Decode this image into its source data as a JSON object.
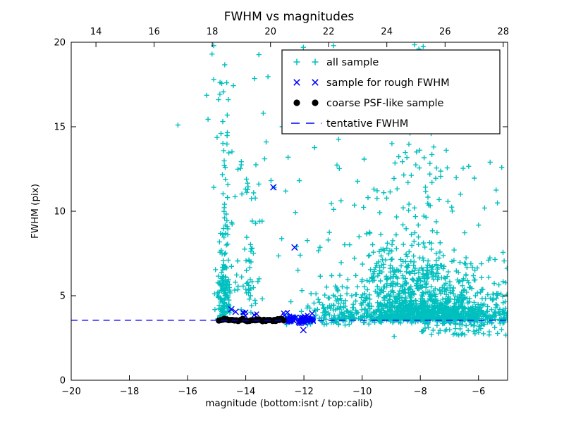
{
  "figure": {
    "title": "FWHM vs magnitudes",
    "background": "#ffffff",
    "axis_color": "#000000"
  },
  "axes": {
    "xlabel": "magnitude (bottom:isnt / top:calib)",
    "ylabel": "FWHM (pix)",
    "x_bottom": {
      "range": [
        -20,
        -5
      ],
      "ticks": [
        {
          "v": -20,
          "label": "−20"
        },
        {
          "v": -18,
          "label": "−18"
        },
        {
          "v": -16,
          "label": "−16"
        },
        {
          "v": -14,
          "label": "−14"
        },
        {
          "v": -12,
          "label": "−12"
        },
        {
          "v": -10,
          "label": "−10"
        },
        {
          "v": -8,
          "label": "−8"
        },
        {
          "v": -6,
          "label": "−6"
        }
      ]
    },
    "x_top": {
      "range": [
        13.15,
        28.15
      ],
      "ticks": [
        {
          "v": 14,
          "label": "14"
        },
        {
          "v": 16,
          "label": "16"
        },
        {
          "v": 18,
          "label": "18"
        },
        {
          "v": 20,
          "label": "20"
        },
        {
          "v": 22,
          "label": "22"
        },
        {
          "v": 24,
          "label": "24"
        },
        {
          "v": 26,
          "label": "26"
        },
        {
          "v": 28,
          "label": "28"
        }
      ]
    },
    "y": {
      "range": [
        0,
        20
      ],
      "ticks": [
        {
          "v": 0,
          "label": "0"
        },
        {
          "v": 5,
          "label": "5"
        },
        {
          "v": 10,
          "label": "10"
        },
        {
          "v": 15,
          "label": "15"
        },
        {
          "v": 20,
          "label": "20"
        }
      ]
    }
  },
  "legend": {
    "items": [
      {
        "label": "all sample",
        "marker": "plus",
        "color": "#00bfbf"
      },
      {
        "label": "sample for rough FWHM",
        "marker": "x",
        "color": "#0000ff"
      },
      {
        "label": "coarse PSF-like sample",
        "marker": "dot",
        "color": "#000000"
      },
      {
        "label": "tentative FWHM",
        "marker": "dash",
        "color": "#0000ff"
      }
    ]
  },
  "chart_data": {
    "type": "scatter",
    "title": "FWHM vs magnitudes",
    "xlabel": "magnitude (bottom:isnt / top:calib)",
    "ylabel": "FWHM (pix)",
    "xlim": [
      -20,
      -5
    ],
    "x_top_lim": [
      13.15,
      28.15
    ],
    "ylim": [
      0,
      20
    ],
    "grid": false,
    "legend_position": "upper right",
    "tentative_fwhm": 3.55,
    "seed": 1337,
    "series": [
      {
        "name": "all sample",
        "marker": "+",
        "color": "#00bfbf",
        "clusters": [
          {
            "n": 480,
            "x": {
              "dist": "normal",
              "mu": -7.7,
              "sigma": 1.15,
              "min": -11.2,
              "max": -5.0
            },
            "y": {
              "dist": "halfnormal",
              "base": 3.55,
              "sigma": 0.45,
              "max": 20
            }
          },
          {
            "n": 430,
            "x": {
              "dist": "normal",
              "mu": -8.15,
              "sigma": 1.05,
              "min": -11.3,
              "max": -5.0
            },
            "y": {
              "dist": "halfnormal",
              "base": 3.6,
              "sigma": 1.7,
              "max": 20
            }
          },
          {
            "n": 260,
            "x": {
              "dist": "normal",
              "mu": -8.3,
              "sigma": 1.15,
              "min": -11.5,
              "max": -5.0
            },
            "y": {
              "dist": "halfnormal",
              "base": 3.7,
              "sigma": 3.3,
              "max": 16.8
            }
          },
          {
            "n": 70,
            "x": {
              "dist": "normal",
              "mu": -8.1,
              "sigma": 1.4,
              "min": -11.0,
              "max": -5.0
            },
            "y": {
              "dist": "uniform",
              "min": 10,
              "max": 16.5
            }
          },
          {
            "n": 80,
            "x": {
              "dist": "uniform",
              "min": -6.6,
              "max": -5.0
            },
            "y": {
              "dist": "halfnormal",
              "base": 3.5,
              "sigma": 1.4,
              "max": 9
            }
          },
          {
            "n": 55,
            "x": {
              "dist": "uniform",
              "min": -8.0,
              "max": -5.05
            },
            "y": {
              "dist": "uniform",
              "min": 2.65,
              "max": 3.4
            }
          },
          {
            "n": 210,
            "x": {
              "dist": "uniform",
              "min": -12.6,
              "max": -5.0
            },
            "y": {
              "dist": "normal",
              "mu": 3.55,
              "sigma": 0.12,
              "min": 3.2,
              "max": 3.95
            }
          },
          {
            "n": 85,
            "x": {
              "dist": "uniform",
              "min": -12.1,
              "max": -5.1
            },
            "y": {
              "dist": "halfnormal",
              "base": 3.8,
              "sigma": 0.6,
              "max": 6
            }
          },
          {
            "n": 40,
            "x": {
              "dist": "uniform",
              "min": -11.35,
              "max": -10.2
            },
            "y": {
              "dist": "halfnormal",
              "base": 3.6,
              "sigma": 1.1,
              "max": 7
            }
          },
          {
            "n": 150,
            "x": {
              "dist": "normal",
              "mu": -14.75,
              "sigma": 0.12,
              "min": -15.2,
              "max": -14.4
            },
            "y": {
              "dist": "halfnormal",
              "base": 3.6,
              "sigma": 1.9,
              "max": 10
            }
          },
          {
            "n": 35,
            "x": {
              "dist": "normal",
              "mu": -14.73,
              "sigma": 0.14,
              "min": -15.2,
              "max": -14.35
            },
            "y": {
              "dist": "uniform",
              "min": 8,
              "max": 15
            }
          },
          {
            "n": 8,
            "x": {
              "dist": "normal",
              "mu": -14.8,
              "sigma": 0.15,
              "min": -15.2,
              "max": -14.4
            },
            "y": {
              "dist": "uniform",
              "min": 15,
              "max": 19.9
            }
          },
          {
            "n": 45,
            "x": {
              "dist": "normal",
              "mu": -13.95,
              "sigma": 0.22,
              "min": -14.5,
              "max": -13.4
            },
            "y": {
              "dist": "uniform",
              "min": 3.9,
              "max": 8.5
            }
          },
          {
            "n": 20,
            "x": {
              "dist": "normal",
              "mu": -13.9,
              "sigma": 0.25,
              "min": -14.5,
              "max": -13.3
            },
            "y": {
              "dist": "uniform",
              "min": 8.5,
              "max": 13
            }
          },
          {
            "n": 30,
            "x": {
              "dist": "uniform",
              "min": -13.3,
              "max": -10.7
            },
            "y": {
              "dist": "uniform",
              "min": 4.2,
              "max": 15
            }
          },
          {
            "n": 6,
            "x": {
              "dist": "uniform",
              "min": -15.4,
              "max": -13.2
            },
            "y": {
              "dist": "uniform",
              "min": 15,
              "max": 19.5
            }
          }
        ],
        "points": [
          [
            -15.1,
            19.8
          ],
          [
            -15.16,
            19.3
          ],
          [
            -15.1,
            17.8
          ],
          [
            -13.7,
            17.85
          ],
          [
            -13.4,
            15.8
          ],
          [
            -16.33,
            15.1
          ],
          [
            -14.85,
            14.6
          ],
          [
            -13.3,
            14.1
          ],
          [
            -12.02,
            19.7
          ],
          [
            -10.98,
            19.8
          ],
          [
            -8.2,
            19.85
          ],
          [
            -7.9,
            19.75
          ],
          [
            -8.05,
            19.6
          ],
          [
            -12.4,
            16.9
          ],
          [
            -5.6,
            12.9
          ],
          [
            -5.2,
            12.6
          ],
          [
            -8.9,
            2.6
          ],
          [
            -13.35,
            13.1
          ],
          [
            -14.6,
            16.6
          ],
          [
            -12.75,
            15.0
          ]
        ]
      },
      {
        "name": "sample for rough FWHM",
        "marker": "x",
        "color": "#0000ff",
        "clusters": [
          {
            "n": 65,
            "x": {
              "dist": "uniform",
              "min": -12.62,
              "max": -11.66
            },
            "y": {
              "dist": "normal",
              "mu": 3.56,
              "sigma": 0.1,
              "min": 3.3,
              "max": 3.85
            }
          },
          {
            "n": 6,
            "x": {
              "dist": "uniform",
              "min": -14.55,
              "max": -13.6
            },
            "y": {
              "dist": "normal",
              "mu": 3.95,
              "sigma": 0.12,
              "min": 3.7,
              "max": 4.25
            }
          },
          {
            "n": 4,
            "x": {
              "dist": "uniform",
              "min": -12.8,
              "max": -12.2
            },
            "y": {
              "dist": "normal",
              "mu": 3.8,
              "sigma": 0.15,
              "min": 3.5,
              "max": 4.1
            }
          }
        ],
        "points": [
          [
            -13.05,
            11.42
          ],
          [
            -12.32,
            7.86
          ],
          [
            -12.02,
            2.97
          ],
          [
            -11.72,
            3.95
          ],
          [
            -14.5,
            4.2
          ],
          [
            -14.35,
            4.05
          ]
        ]
      },
      {
        "name": "coarse PSF-like sample",
        "marker": "circle",
        "color": "#000000",
        "y_center": 3.56,
        "segments": [
          {
            "x0": -14.92,
            "x1": -14.26,
            "n": 13
          },
          {
            "x0": -14.16,
            "x1": -13.66,
            "n": 10
          },
          {
            "x0": -13.63,
            "x1": -13.16,
            "n": 10
          },
          {
            "x0": -13.08,
            "x1": -12.7,
            "n": 9
          }
        ]
      },
      {
        "name": "tentative FWHM",
        "type": "hline",
        "y": 3.55,
        "style": "dashed",
        "color": "#0000ff"
      }
    ]
  },
  "colors": {
    "all_sample": "#00bfbf",
    "rough_fwhm": "#0000ff",
    "coarse_psf": "#000000",
    "tentative_line": "#0000ff",
    "axis": "#000000",
    "background": "#ffffff"
  }
}
